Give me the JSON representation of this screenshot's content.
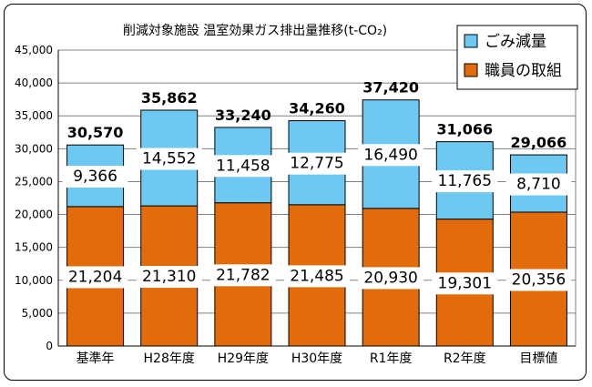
{
  "chart_data": {
    "type": "bar",
    "stacked": true,
    "title": "削減対象施設 温室効果ガス排出量推移(t-CO₂)",
    "categories": [
      "基準年",
      "H28年度",
      "H29年度",
      "H30年度",
      "R1年度",
      "R2年度",
      "目標値"
    ],
    "series": [
      {
        "name": "職員の取組",
        "color": "#E36C0A",
        "values": [
          21204,
          21310,
          21782,
          21485,
          20930,
          19301,
          20356
        ]
      },
      {
        "name": "ごみ減量",
        "color": "#6DC9F2",
        "values": [
          9366,
          14552,
          11458,
          12775,
          16490,
          11765,
          8710
        ]
      }
    ],
    "totals": [
      30570,
      35862,
      33240,
      34260,
      37420,
      31066,
      29066
    ],
    "bottom_labels": [
      "21,204",
      "21,310",
      "21,782",
      "21,485",
      "20,930",
      "19,301",
      "20,356"
    ],
    "top_labels": [
      "9,366",
      "14,552",
      "11,458",
      "12,775",
      "16,490",
      "11,765",
      "8,710"
    ],
    "total_labels": [
      "30,570",
      "35,862",
      "33,240",
      "34,260",
      "37,420",
      "31,066",
      "29,066"
    ],
    "yticks": [
      "0",
      "5,000",
      "10,000",
      "15,000",
      "20,000",
      "25,000",
      "30,000",
      "35,000",
      "40,000",
      "45,000"
    ],
    "ylim": [
      0,
      45000
    ],
    "grid": true,
    "legend": "top-right"
  }
}
